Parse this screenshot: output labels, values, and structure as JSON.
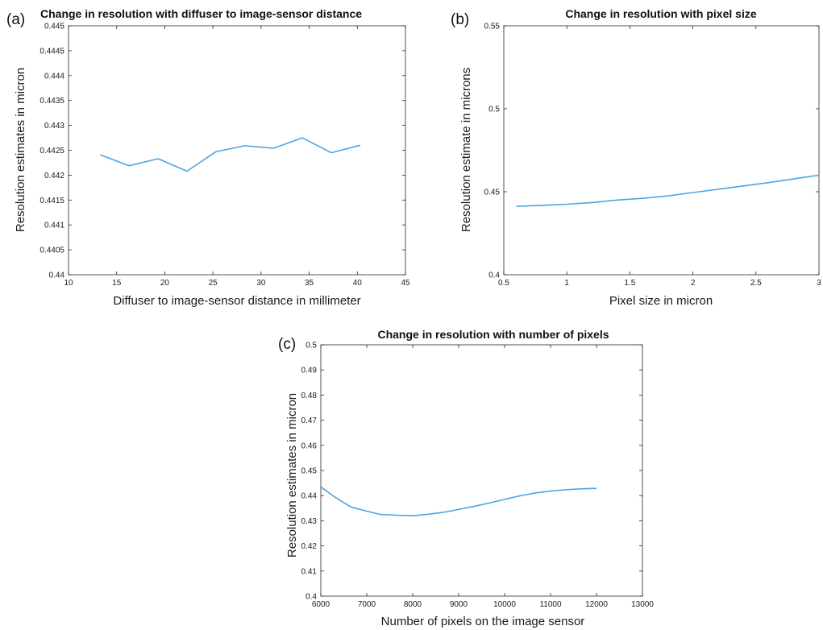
{
  "chart_data": [
    {
      "id": "a",
      "panel_label": "(a)",
      "type": "line",
      "title": "Change in resolution with diffuser to image-sensor distance",
      "xlabel": "Diffuser to image-sensor distance in millimeter",
      "ylabel": "Resolution estimates in micron",
      "xlim": [
        10,
        45
      ],
      "ylim": [
        0.44,
        0.445
      ],
      "xticks": [
        "10",
        "15",
        "20",
        "25",
        "30",
        "35",
        "40",
        "45"
      ],
      "yticks": [
        "0.44",
        "0.4405",
        "0.441",
        "0.4415",
        "0.442",
        "0.4425",
        "0.443",
        "0.4435",
        "0.444",
        "0.4445",
        "0.445"
      ],
      "grid": false,
      "line_color": "#4fa3e0",
      "series": [
        {
          "x": [
            13.3,
            16.3,
            19.3,
            22.3,
            25.3,
            28.3,
            31.3,
            34.3,
            37.3,
            40.3
          ],
          "y": [
            0.44241,
            0.44219,
            0.44233,
            0.44208,
            0.44247,
            0.44259,
            0.44254,
            0.44275,
            0.44245,
            0.4426
          ]
        }
      ]
    },
    {
      "id": "b",
      "panel_label": "(b)",
      "type": "line",
      "title": "Change in resolution with pixel size",
      "xlabel": "Pixel size in micron",
      "ylabel": "Resolution estimate in microns",
      "xlim": [
        0.5,
        3
      ],
      "ylim": [
        0.4,
        0.55
      ],
      "xticks": [
        "0.5",
        "1",
        "1.5",
        "2",
        "2.5",
        "3"
      ],
      "yticks": [
        "0.4",
        "0.45",
        "0.5",
        "0.55"
      ],
      "grid": false,
      "line_color": "#4fa3e0",
      "series": [
        {
          "x": [
            0.6,
            0.8,
            1.0,
            1.2,
            1.4,
            1.6,
            1.8,
            2.0,
            2.2,
            2.4,
            2.6,
            2.8,
            3.0
          ],
          "y": [
            0.4412,
            0.4418,
            0.4425,
            0.4435,
            0.445,
            0.446,
            0.4475,
            0.4495,
            0.4515,
            0.4535,
            0.4555,
            0.4577,
            0.46
          ]
        }
      ]
    },
    {
      "id": "c",
      "panel_label": "(c)",
      "type": "line",
      "title": "Change in resolution with number of pixels",
      "xlabel": "Number of pixels on the image sensor",
      "ylabel": "Resolution estimates in micron",
      "xlim": [
        6000,
        13000
      ],
      "ylim": [
        0.4,
        0.5
      ],
      "xticks": [
        "6000",
        "7000",
        "8000",
        "9000",
        "10000",
        "11000",
        "12000",
        "13000"
      ],
      "yticks": [
        "0.4",
        "0.41",
        "0.42",
        "0.43",
        "0.44",
        "0.45",
        "0.46",
        "0.47",
        "0.48",
        "0.49",
        "0.5"
      ],
      "grid": false,
      "line_color": "#4fa3e0",
      "series": [
        {
          "x": [
            6000,
            6300,
            6650,
            7000,
            7300,
            7650,
            8000,
            8300,
            8650,
            9000,
            9350,
            9650,
            10000,
            10300,
            10650,
            11000,
            11300,
            11650,
            12000
          ],
          "y": [
            0.4435,
            0.4395,
            0.4355,
            0.4338,
            0.4325,
            0.4322,
            0.432,
            0.4325,
            0.4333,
            0.4345,
            0.4358,
            0.437,
            0.4385,
            0.4398,
            0.441,
            0.4418,
            0.4423,
            0.4427,
            0.4429
          ]
        }
      ]
    }
  ]
}
